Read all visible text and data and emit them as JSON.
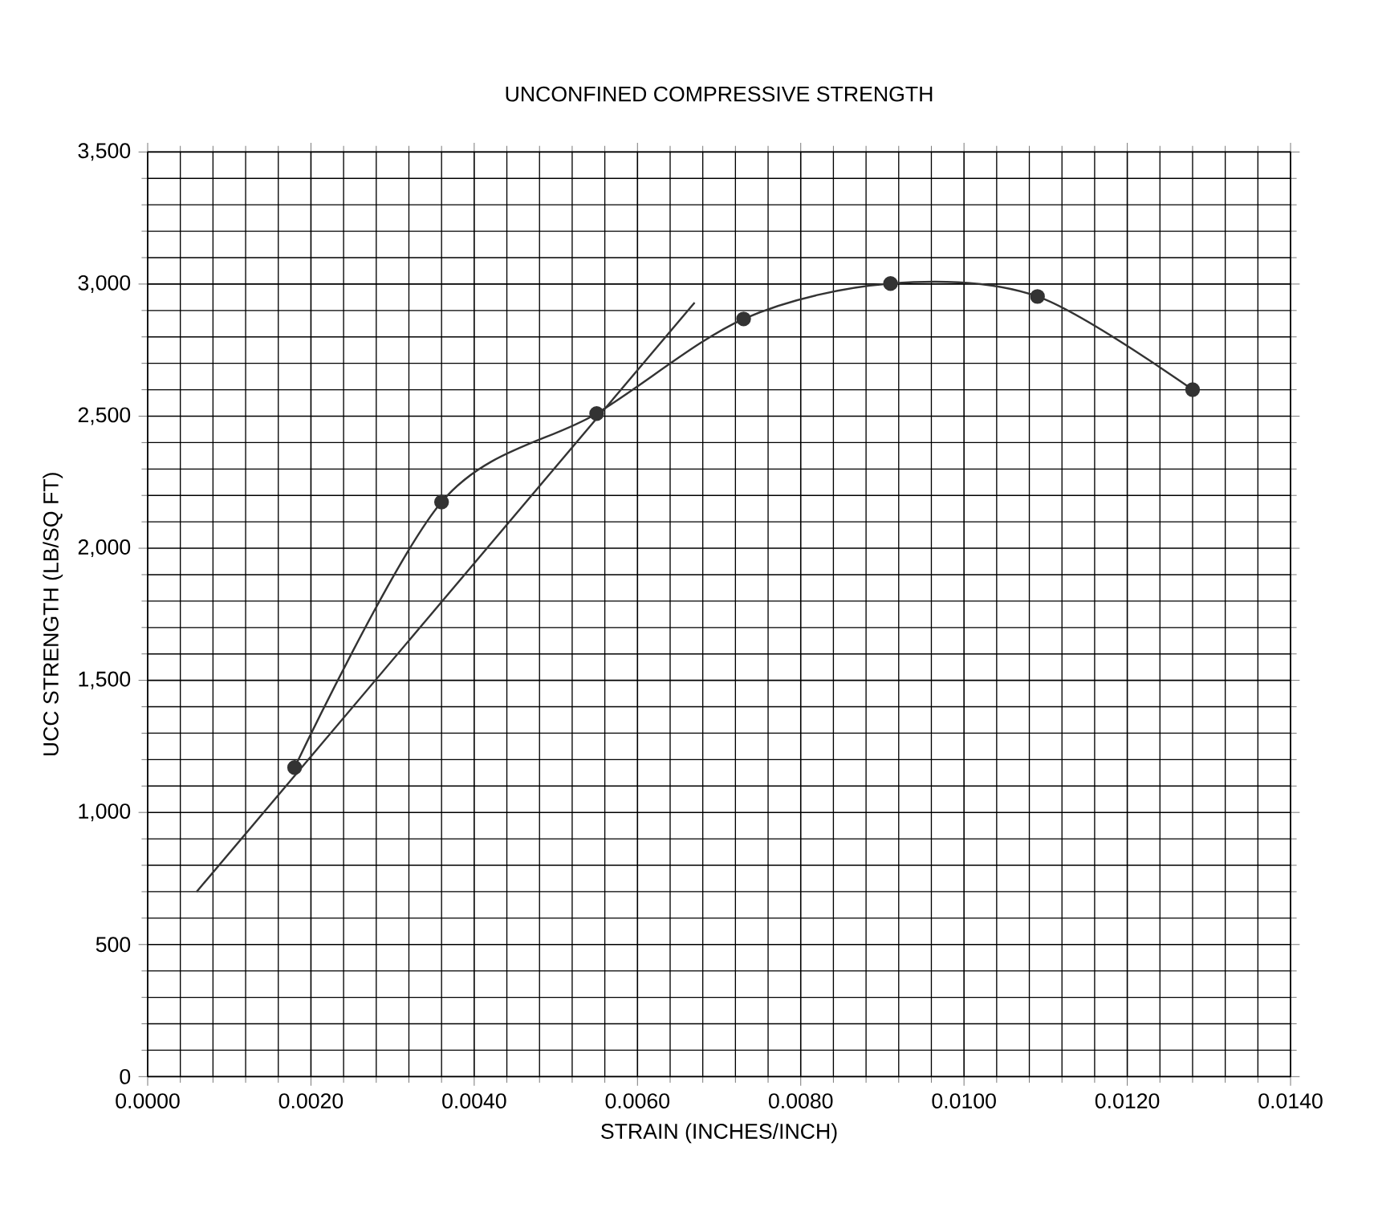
{
  "chart_data": {
    "type": "line",
    "title": "UNCONFINED COMPRESSIVE STRENGTH",
    "xlabel": "STRAIN (INCHES/INCH)",
    "ylabel": "UCC STRENGTH (LB/SQ FT)",
    "series": [
      {
        "color": "#333333",
        "marker": "circle",
        "x": [
          0.0018,
          0.0036,
          0.0055,
          0.0073,
          0.0091,
          0.0109,
          0.0128
        ],
        "values": [
          1170,
          2175,
          2510,
          2868,
          3002,
          2953,
          2600
        ]
      },
      {
        "color": "#333333",
        "marker": "none",
        "x": [
          0.0006,
          0.0067
        ],
        "values": [
          700,
          2930
        ]
      }
    ],
    "xlim": [
      0,
      0.014
    ],
    "ylim": [
      0,
      3500
    ],
    "xticks": [
      {
        "value": 0,
        "label": "0.0000"
      },
      {
        "value": 0.002,
        "label": "0.0020"
      },
      {
        "value": 0.004,
        "label": "0.0040"
      },
      {
        "value": 0.006,
        "label": "0.0060"
      },
      {
        "value": 0.008,
        "label": "0.0080"
      },
      {
        "value": 0.01,
        "label": "0.0100"
      },
      {
        "value": 0.012,
        "label": "0.0120"
      },
      {
        "value": 0.014,
        "label": "0.0140"
      }
    ],
    "yticks": [
      0,
      500,
      {
        "value": 1000,
        "label": "1,000"
      },
      {
        "value": 1500,
        "label": "1,500"
      },
      {
        "value": 2000,
        "label": "2,000"
      },
      {
        "value": 2500,
        "label": "2,500"
      },
      {
        "value": 3000,
        "label": "3,000"
      },
      {
        "value": 3500,
        "label": "3,500"
      }
    ],
    "grid": true
  }
}
